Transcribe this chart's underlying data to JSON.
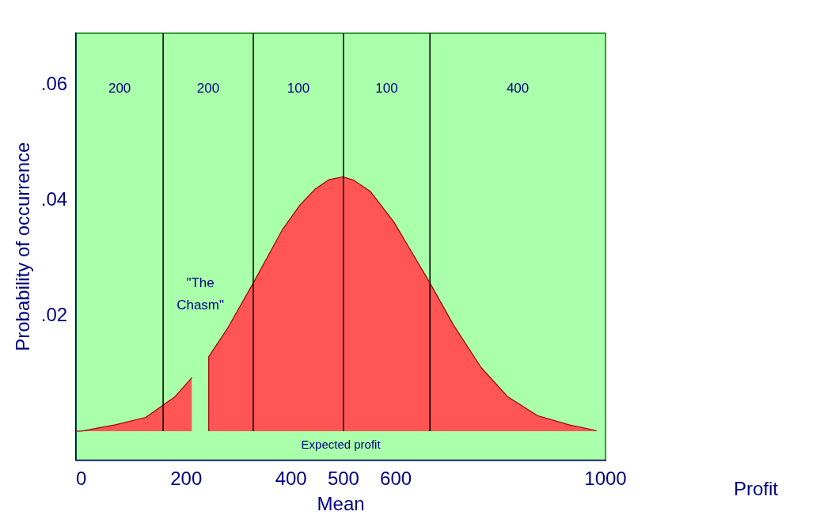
{
  "chart_data": {
    "type": "area",
    "xlabel": "Mean",
    "ylabel": "Probability of occurrence",
    "xlim": [
      -10,
      1000
    ],
    "ylim": [
      -0.005,
      0.069
    ],
    "xticks": [
      0,
      200,
      400,
      500,
      600,
      1000
    ],
    "yticks": [
      {
        "value": 0.02,
        "label": ".02"
      },
      {
        "value": 0.04,
        "label": ".04"
      },
      {
        "value": 0.06,
        "label": ".06"
      }
    ],
    "grid": false,
    "series": [
      {
        "color": "#ff5555",
        "x": [
          -10,
          0,
          65,
          123,
          179,
          211,
          227,
          243,
          243,
          278,
          328,
          384,
          417,
          445,
          472,
          499,
          520,
          551,
          596,
          665,
          710,
          763,
          813,
          870,
          930,
          983
        ],
        "values": [
          0,
          0,
          0.0011,
          0.0024,
          0.006,
          0.0093,
          null,
          0,
          0.0129,
          0.0177,
          0.0257,
          0.035,
          0.0392,
          0.0419,
          0.0436,
          0.0441,
          0.0435,
          0.0416,
          0.0363,
          0.0257,
          0.0184,
          0.011,
          0.006,
          0.0027,
          0.0011,
          0.0001
        ]
      }
    ],
    "ref_lines": [
      {
        "axis": "x",
        "value": 156,
        "color": "#000000"
      },
      {
        "axis": "x",
        "value": 328,
        "color": "#000000"
      },
      {
        "axis": "x",
        "value": 500,
        "color": "#000000"
      },
      {
        "axis": "x",
        "value": 665,
        "color": "#000000"
      }
    ],
    "annotations": [
      "200",
      "200",
      "100",
      "100",
      "400",
      "\"The Chasm\"",
      "Expected profit",
      "Profit"
    ]
  }
}
